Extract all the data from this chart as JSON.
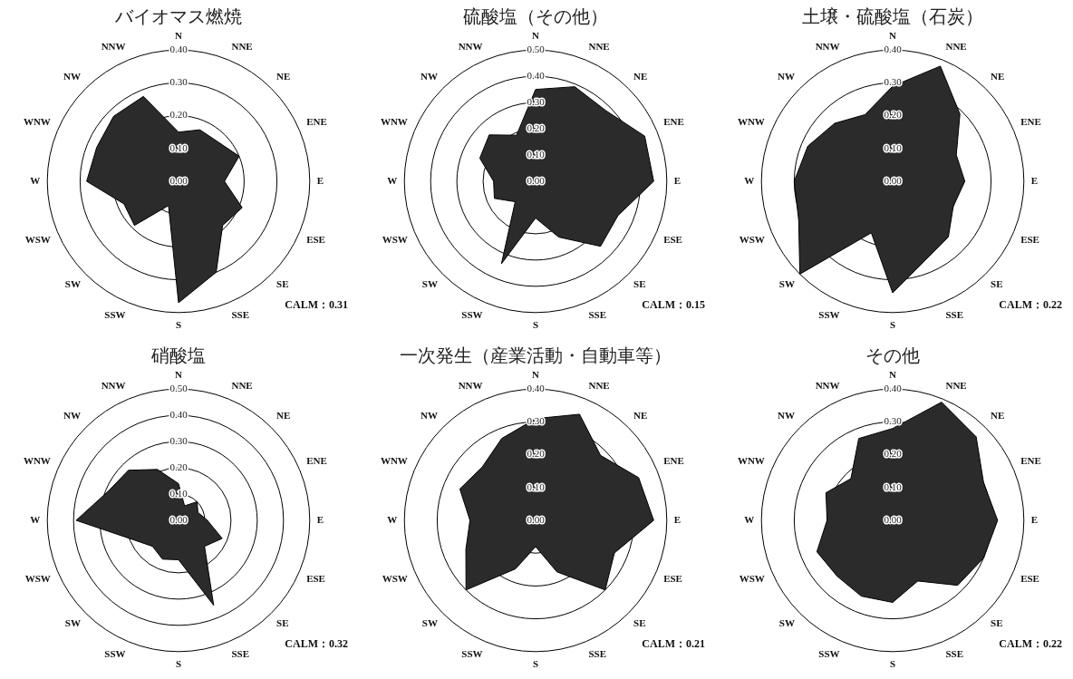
{
  "chart_data": [
    {
      "type": "radar",
      "title": "バイオマス燃焼",
      "categories": [
        "N",
        "NNE",
        "NE",
        "ENE",
        "E",
        "ESE",
        "SE",
        "SSE",
        "S",
        "SSW",
        "SW",
        "WSW",
        "W",
        "WNW",
        "NW",
        "NNW"
      ],
      "series": [
        {
          "color": "#2b2b2b",
          "values": [
            0.15,
            0.17,
            0.17,
            0.2,
            0.14,
            0.21,
            0.19,
            0.3,
            0.37,
            0.08,
            0.19,
            0.18,
            0.28,
            0.27,
            0.28,
            0.28
          ]
        }
      ],
      "ylim": [
        0,
        0.4
      ],
      "yticks": [
        {
          "value": 0,
          "label": "0.00"
        },
        {
          "value": 0.1,
          "label": "0.10"
        },
        {
          "value": 0.2,
          "label": "0.20"
        },
        {
          "value": 0.3,
          "label": "0.30"
        },
        {
          "value": 0.4,
          "label": "0.40"
        }
      ],
      "annotations": [
        "CALM：0.31"
      ],
      "grid": true,
      "marker": "none",
      "legend": false
    },
    {
      "type": "radar",
      "title": "硫酸塩（その他）",
      "categories": [
        "N",
        "NNE",
        "NE",
        "ENE",
        "E",
        "ESE",
        "SE",
        "SSE",
        "S",
        "SSW",
        "SW",
        "WSW",
        "W",
        "WNW",
        "NW",
        "NNW"
      ],
      "series": [
        {
          "color": "#2b2b2b",
          "values": [
            0.35,
            0.39,
            0.38,
            0.45,
            0.45,
            0.34,
            0.35,
            0.23,
            0.14,
            0.34,
            0.11,
            0.17,
            0.16,
            0.23,
            0.25,
            0.19
          ]
        }
      ],
      "ylim": [
        0,
        0.5
      ],
      "yticks": [
        {
          "value": 0,
          "label": "0.00"
        },
        {
          "value": 0.1,
          "label": "0.10"
        },
        {
          "value": 0.2,
          "label": "0.20"
        },
        {
          "value": 0.3,
          "label": "0.30"
        },
        {
          "value": 0.4,
          "label": "0.40"
        },
        {
          "value": 0.5,
          "label": "0.50"
        }
      ],
      "annotations": [
        "CALM：0.15"
      ],
      "grid": true,
      "marker": "none",
      "legend": false
    },
    {
      "type": "radar",
      "title": "土壌・硫酸塩（石炭）",
      "categories": [
        "N",
        "NNE",
        "NE",
        "ENE",
        "E",
        "ESE",
        "SE",
        "SSE",
        "S",
        "SSW",
        "SW",
        "WSW",
        "W",
        "WNW",
        "NW",
        "NNW"
      ],
      "series": [
        {
          "color": "#2b2b2b",
          "values": [
            0.29,
            0.38,
            0.29,
            0.21,
            0.22,
            0.2,
            0.24,
            0.26,
            0.34,
            0.17,
            0.4,
            0.31,
            0.3,
            0.28,
            0.25,
            0.22
          ]
        }
      ],
      "ylim": [
        0,
        0.4
      ],
      "yticks": [
        {
          "value": 0,
          "label": "0.00"
        },
        {
          "value": 0.1,
          "label": "0.10"
        },
        {
          "value": 0.2,
          "label": "0.20"
        },
        {
          "value": 0.3,
          "label": "0.30"
        },
        {
          "value": 0.4,
          "label": "0.40"
        }
      ],
      "annotations": [
        "CALM：0.22"
      ],
      "grid": true,
      "marker": "none",
      "legend": false
    },
    {
      "type": "radar",
      "title": "硝酸塩",
      "categories": [
        "N",
        "NNE",
        "NE",
        "ENE",
        "E",
        "ESE",
        "SE",
        "SSE",
        "S",
        "SSW",
        "SW",
        "WSW",
        "W",
        "WNW",
        "NW",
        "NNW"
      ],
      "series": [
        {
          "color": "#2b2b2b",
          "values": [
            0.14,
            0.06,
            0.1,
            0.08,
            0.11,
            0.18,
            0.14,
            0.35,
            0.15,
            0.16,
            0.14,
            0.19,
            0.39,
            0.29,
            0.27,
            0.21
          ]
        }
      ],
      "ylim": [
        0,
        0.5
      ],
      "yticks": [
        {
          "value": 0,
          "label": "0.00"
        },
        {
          "value": 0.1,
          "label": "0.10"
        },
        {
          "value": 0.2,
          "label": "0.20"
        },
        {
          "value": 0.3,
          "label": "0.30"
        },
        {
          "value": 0.4,
          "label": "0.40"
        },
        {
          "value": 0.5,
          "label": "0.50"
        }
      ],
      "annotations": [
        "CALM：0.32"
      ],
      "grid": true,
      "marker": "none",
      "legend": false
    },
    {
      "type": "radar",
      "title": "一次発生（産業活動・自動車等）",
      "categories": [
        "N",
        "NNE",
        "NE",
        "ENE",
        "E",
        "ESE",
        "SE",
        "SSE",
        "S",
        "SSW",
        "SW",
        "WSW",
        "W",
        "WNW",
        "NW",
        "NNW"
      ],
      "series": [
        {
          "color": "#2b2b2b",
          "values": [
            0.31,
            0.35,
            0.28,
            0.34,
            0.36,
            0.26,
            0.3,
            0.17,
            0.08,
            0.16,
            0.3,
            0.23,
            0.2,
            0.25,
            0.23,
            0.27
          ]
        }
      ],
      "ylim": [
        0,
        0.4
      ],
      "yticks": [
        {
          "value": 0,
          "label": "0.00"
        },
        {
          "value": 0.1,
          "label": "0.10"
        },
        {
          "value": 0.2,
          "label": "0.20"
        },
        {
          "value": 0.3,
          "label": "0.30"
        },
        {
          "value": 0.4,
          "label": "0.40"
        }
      ],
      "annotations": [
        "CALM：0.21"
      ],
      "grid": true,
      "marker": "none",
      "legend": false
    },
    {
      "type": "radar",
      "title": "その他",
      "categories": [
        "N",
        "NNE",
        "NE",
        "ENE",
        "E",
        "ESE",
        "SE",
        "SSE",
        "S",
        "SSW",
        "SW",
        "WSW",
        "W",
        "WNW",
        "NW",
        "NNW"
      ],
      "series": [
        {
          "color": "#2b2b2b",
          "values": [
            0.28,
            0.39,
            0.36,
            0.3,
            0.32,
            0.3,
            0.28,
            0.2,
            0.25,
            0.25,
            0.24,
            0.25,
            0.2,
            0.22,
            0.18,
            0.27
          ]
        }
      ],
      "ylim": [
        0,
        0.4
      ],
      "yticks": [
        {
          "value": 0,
          "label": "0.00"
        },
        {
          "value": 0.1,
          "label": "0.10"
        },
        {
          "value": 0.2,
          "label": "0.20"
        },
        {
          "value": 0.3,
          "label": "0.30"
        },
        {
          "value": 0.4,
          "label": "0.40"
        }
      ],
      "annotations": [
        "CALM：0.22"
      ],
      "grid": true,
      "marker": "none",
      "legend": false
    }
  ]
}
